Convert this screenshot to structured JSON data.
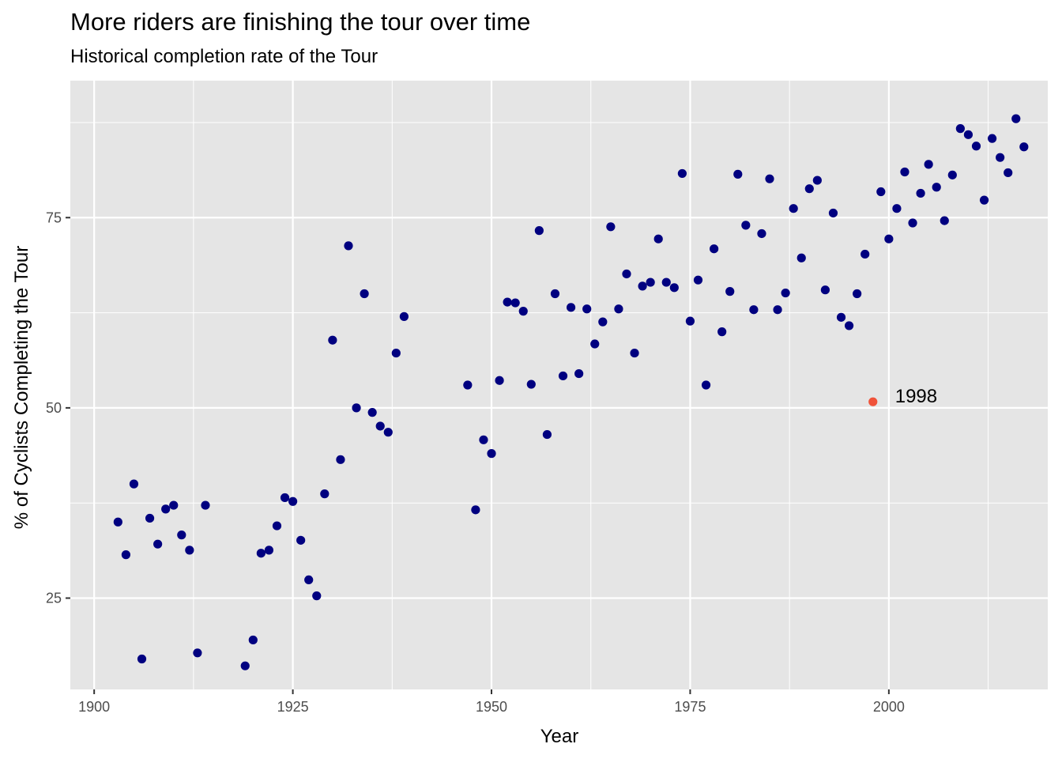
{
  "chart_data": {
    "type": "scatter",
    "title": "More riders are finishing the tour over time",
    "subtitle": "Historical completion rate of the Tour",
    "xlabel": "Year",
    "ylabel": "% of Cyclists Completing the Tour",
    "xlim": [
      1897,
      2020
    ],
    "ylim": [
      13,
      93
    ],
    "x_ticks": [
      1900,
      1925,
      1950,
      1975,
      2000
    ],
    "y_ticks": [
      25,
      50,
      75
    ],
    "grid": true,
    "panel_color": "#e5e5e5",
    "grid_color": "#ffffff",
    "point_color": "#000080",
    "highlight_color": "#f0533a",
    "highlight": {
      "x": 1998,
      "y": 50.8,
      "label": "1998"
    },
    "points": [
      [
        1903,
        35.0
      ],
      [
        1904,
        30.7
      ],
      [
        1905,
        40.0
      ],
      [
        1906,
        17.0
      ],
      [
        1907,
        35.5
      ],
      [
        1908,
        32.1
      ],
      [
        1909,
        36.7
      ],
      [
        1910,
        37.2
      ],
      [
        1911,
        33.3
      ],
      [
        1912,
        31.3
      ],
      [
        1913,
        17.8
      ],
      [
        1914,
        37.2
      ],
      [
        1919,
        16.1
      ],
      [
        1920,
        19.5
      ],
      [
        1921,
        30.9
      ],
      [
        1922,
        31.3
      ],
      [
        1923,
        34.5
      ],
      [
        1924,
        38.2
      ],
      [
        1925,
        37.7
      ],
      [
        1926,
        32.6
      ],
      [
        1927,
        27.4
      ],
      [
        1928,
        25.3
      ],
      [
        1929,
        38.7
      ],
      [
        1930,
        58.9
      ],
      [
        1931,
        43.2
      ],
      [
        1932,
        71.3
      ],
      [
        1933,
        50.0
      ],
      [
        1934,
        65.0
      ],
      [
        1935,
        49.4
      ],
      [
        1936,
        47.6
      ],
      [
        1937,
        46.8
      ],
      [
        1938,
        57.2
      ],
      [
        1939,
        62.0
      ],
      [
        1947,
        53.0
      ],
      [
        1948,
        36.6
      ],
      [
        1949,
        45.8
      ],
      [
        1950,
        44.0
      ],
      [
        1951,
        53.6
      ],
      [
        1952,
        63.9
      ],
      [
        1953,
        63.8
      ],
      [
        1954,
        62.7
      ],
      [
        1955,
        53.1
      ],
      [
        1956,
        73.3
      ],
      [
        1957,
        46.5
      ],
      [
        1958,
        65.0
      ],
      [
        1959,
        54.2
      ],
      [
        1960,
        63.2
      ],
      [
        1961,
        54.5
      ],
      [
        1962,
        63.0
      ],
      [
        1963,
        58.4
      ],
      [
        1964,
        61.3
      ],
      [
        1965,
        73.8
      ],
      [
        1966,
        63.0
      ],
      [
        1967,
        67.6
      ],
      [
        1968,
        57.2
      ],
      [
        1969,
        66.0
      ],
      [
        1970,
        66.5
      ],
      [
        1971,
        72.2
      ],
      [
        1972,
        66.5
      ],
      [
        1973,
        65.8
      ],
      [
        1974,
        80.8
      ],
      [
        1975,
        61.4
      ],
      [
        1976,
        66.8
      ],
      [
        1977,
        53.0
      ],
      [
        1978,
        70.9
      ],
      [
        1979,
        60.0
      ],
      [
        1980,
        65.3
      ],
      [
        1981,
        80.7
      ],
      [
        1982,
        74.0
      ],
      [
        1983,
        62.9
      ],
      [
        1984,
        72.9
      ],
      [
        1985,
        80.1
      ],
      [
        1986,
        62.9
      ],
      [
        1987,
        65.1
      ],
      [
        1988,
        76.2
      ],
      [
        1989,
        69.7
      ],
      [
        1990,
        78.8
      ],
      [
        1991,
        79.9
      ],
      [
        1992,
        65.5
      ],
      [
        1993,
        75.6
      ],
      [
        1994,
        61.9
      ],
      [
        1995,
        60.8
      ],
      [
        1996,
        65.0
      ],
      [
        1997,
        70.2
      ],
      [
        1999,
        78.4
      ],
      [
        2000,
        72.2
      ],
      [
        2001,
        76.2
      ],
      [
        2002,
        81.0
      ],
      [
        2003,
        74.3
      ],
      [
        2004,
        78.2
      ],
      [
        2005,
        82.0
      ],
      [
        2006,
        79.0
      ],
      [
        2007,
        74.6
      ],
      [
        2008,
        80.6
      ],
      [
        2009,
        86.7
      ],
      [
        2010,
        85.9
      ],
      [
        2011,
        84.4
      ],
      [
        2012,
        77.3
      ],
      [
        2013,
        85.4
      ],
      [
        2014,
        82.9
      ],
      [
        2015,
        80.9
      ],
      [
        2016,
        88.0
      ],
      [
        2017,
        84.3
      ]
    ]
  }
}
